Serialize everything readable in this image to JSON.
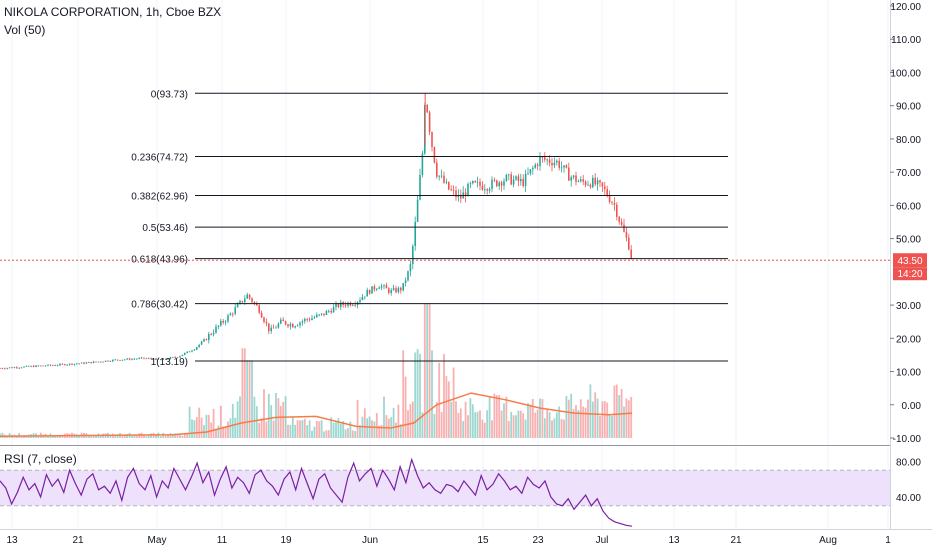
{
  "header": {
    "title": "NIKOLA CORPORATION, 1h, Cboe BZX",
    "volume_label": "Vol (50)"
  },
  "rsi_panel": {
    "label": "RSI (7, close)"
  },
  "colors": {
    "up": "#26a69a",
    "down": "#ef5350",
    "fib_line": "#131722",
    "volume_ma": "#f57c4a",
    "rsi_line": "#7b1fa2",
    "rsi_band": "#ede1fb",
    "price_badge": "#ef5350",
    "grid": "#e0e3eb"
  },
  "chart_data": [
    {
      "type": "candlestick",
      "title": "NIKOLA CORPORATION, 1h, Cboe BZX",
      "x_ticks": [
        "13",
        "21",
        "May",
        "11",
        "19",
        "Jun",
        "15",
        "23",
        "Jul",
        "13",
        "21",
        "Aug",
        "1"
      ],
      "y_ticks": [
        "120.00",
        "110.00",
        "100.00",
        "90.00",
        "80.00",
        "70.00",
        "60.00",
        "50.00",
        "30.00",
        "20.00",
        "10.00",
        "0.00",
        "-10.00"
      ],
      "ylim": [
        -10,
        120
      ],
      "last_price": "43.50",
      "countdown": "14:20",
      "fib_levels": [
        {
          "label": "0(93.73)",
          "value": 93.73
        },
        {
          "label": "0.236(74.72)",
          "value": 74.72
        },
        {
          "label": "0.382(62.96)",
          "value": 62.96
        },
        {
          "label": "0.5(53.46)",
          "value": 53.46
        },
        {
          "label": "0.618(43.96)",
          "value": 43.96
        },
        {
          "label": "0.786(30.42)",
          "value": 30.42
        },
        {
          "label": "1(13.19)",
          "value": 13.19
        }
      ],
      "price_path": [
        {
          "day": 0,
          "close": 11.0
        },
        {
          "day": 5,
          "close": 11.5
        },
        {
          "day": 10,
          "close": 12.0
        },
        {
          "day": 15,
          "close": 12.6
        },
        {
          "day": 20,
          "close": 13.5
        },
        {
          "day": 25,
          "close": 14.0
        },
        {
          "day": 28,
          "close": 13.5
        },
        {
          "day": 31,
          "close": 14.5
        },
        {
          "day": 34,
          "close": 17.0
        },
        {
          "day": 37,
          "close": 22.0
        },
        {
          "day": 40,
          "close": 27.0
        },
        {
          "day": 43,
          "close": 33.0
        },
        {
          "day": 45,
          "close": 29.0
        },
        {
          "day": 47,
          "close": 22.0
        },
        {
          "day": 49,
          "close": 25.0
        },
        {
          "day": 51,
          "close": 24.0
        },
        {
          "day": 53,
          "close": 25.5
        },
        {
          "day": 56,
          "close": 27.0
        },
        {
          "day": 59,
          "close": 30.0
        },
        {
          "day": 62,
          "close": 31.0
        },
        {
          "day": 64,
          "close": 34.0
        },
        {
          "day": 66,
          "close": 36.0
        },
        {
          "day": 68,
          "close": 34.0
        },
        {
          "day": 70,
          "close": 35.0
        },
        {
          "day": 71.5,
          "close": 42.0
        },
        {
          "day": 72.5,
          "close": 58.0
        },
        {
          "day": 73.5,
          "close": 75.0
        },
        {
          "day": 74,
          "close": 93.7
        },
        {
          "day": 75,
          "close": 80.0
        },
        {
          "day": 76,
          "close": 70.0
        },
        {
          "day": 78,
          "close": 65.0
        },
        {
          "day": 80,
          "close": 62.0
        },
        {
          "day": 82,
          "close": 66.0
        },
        {
          "day": 85,
          "close": 66.0
        },
        {
          "day": 88,
          "close": 68.0
        },
        {
          "day": 91,
          "close": 67.0
        },
        {
          "day": 94,
          "close": 74.0
        },
        {
          "day": 97,
          "close": 73.0
        },
        {
          "day": 99,
          "close": 69.0
        },
        {
          "day": 101,
          "close": 67.0
        },
        {
          "day": 103,
          "close": 67.0
        },
        {
          "day": 105,
          "close": 65.0
        },
        {
          "day": 107,
          "close": 60.0
        },
        {
          "day": 108.5,
          "close": 52.0
        },
        {
          "day": 109.5,
          "close": 48.0
        },
        {
          "day": 110,
          "close": 43.5
        }
      ],
      "volume_ma": [
        {
          "day": 0,
          "value": -9.5
        },
        {
          "day": 30,
          "value": -9.0
        },
        {
          "day": 36,
          "value": -8.2
        },
        {
          "day": 42,
          "value": -5.5
        },
        {
          "day": 48,
          "value": -3.8
        },
        {
          "day": 55,
          "value": -3.5
        },
        {
          "day": 62,
          "value": -6.5
        },
        {
          "day": 68,
          "value": -7.0
        },
        {
          "day": 72,
          "value": -5.5
        },
        {
          "day": 76,
          "value": 0.0
        },
        {
          "day": 82,
          "value": 3.5
        },
        {
          "day": 88,
          "value": 1.5
        },
        {
          "day": 94,
          "value": -1.0
        },
        {
          "day": 100,
          "value": -2.5
        },
        {
          "day": 106,
          "value": -3.0
        },
        {
          "day": 110,
          "value": -2.5
        }
      ]
    },
    {
      "type": "line",
      "title": "RSI (7, close)",
      "y_ticks": [
        "80.00",
        "40.00"
      ],
      "ylim": [
        5,
        95
      ],
      "band": [
        30,
        70
      ],
      "values": [
        58,
        50,
        32,
        45,
        62,
        48,
        55,
        40,
        65,
        52,
        60,
        45,
        70,
        55,
        42,
        60,
        66,
        48,
        52,
        44,
        58,
        36,
        62,
        72,
        55,
        48,
        64,
        40,
        58,
        50,
        72,
        60,
        48,
        62,
        78,
        56,
        68,
        42,
        60,
        74,
        50,
        62,
        56,
        44,
        65,
        70,
        58,
        52,
        42,
        60,
        68,
        48,
        72,
        55,
        38,
        60,
        66,
        50,
        42,
        34,
        62,
        78,
        58,
        66,
        72,
        52,
        70,
        60,
        48,
        74,
        56,
        82,
        64,
        50,
        56,
        48,
        44,
        54,
        52,
        46,
        58,
        50,
        42,
        64,
        48,
        54,
        66,
        58,
        48,
        52,
        44,
        62,
        54,
        50,
        58,
        40,
        32,
        30,
        38,
        26,
        34,
        42,
        30,
        38,
        24,
        16,
        12,
        10,
        8,
        7
      ]
    }
  ]
}
